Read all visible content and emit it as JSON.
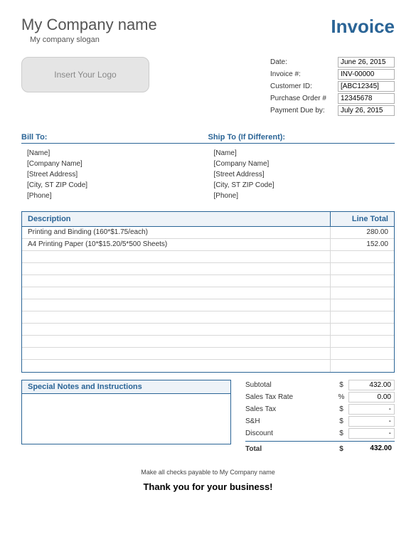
{
  "colors": {
    "accent": "#2a6496",
    "header_bg": "#eef3f8",
    "border_light": "#d8d8d8",
    "logo_bg": "#e5e5e5",
    "text_muted": "#555555"
  },
  "company": {
    "name": "My Company name",
    "slogan": "My company slogan",
    "logo_placeholder": "Insert Your Logo"
  },
  "title": "Invoice",
  "meta": {
    "date_label": "Date:",
    "date_value": "June 26, 2015",
    "invoice_num_label": "Invoice #:",
    "invoice_num_value": "INV-00000",
    "customer_id_label": "Customer ID:",
    "customer_id_value": "[ABC12345]",
    "po_label": "Purchase Order #",
    "po_value": "12345678",
    "due_label": "Payment Due by:",
    "due_value": "July 26, 2015"
  },
  "bill_to": {
    "header": "Bill To:",
    "name": "[Name]",
    "company": "[Company Name]",
    "street": "[Street Address]",
    "city": "[City, ST ZIP Code]",
    "phone": "[Phone]"
  },
  "ship_to": {
    "header": "Ship To (If Different):",
    "name": "[Name]",
    "company": "[Company Name]",
    "street": "[Street Address]",
    "city": "[City, ST ZIP Code]",
    "phone": "[Phone]"
  },
  "items": {
    "header_desc": "Description",
    "header_total": "Line Total",
    "rows": [
      {
        "desc": "Printing and Binding (160*$1.75/each)",
        "total": "280.00"
      },
      {
        "desc": "A4 Printing Paper (10*$15.20/5*500 Sheets)",
        "total": "152.00"
      },
      {
        "desc": "",
        "total": ""
      },
      {
        "desc": "",
        "total": ""
      },
      {
        "desc": "",
        "total": ""
      },
      {
        "desc": "",
        "total": ""
      },
      {
        "desc": "",
        "total": ""
      },
      {
        "desc": "",
        "total": ""
      },
      {
        "desc": "",
        "total": ""
      },
      {
        "desc": "",
        "total": ""
      },
      {
        "desc": "",
        "total": ""
      },
      {
        "desc": "",
        "total": ""
      }
    ]
  },
  "notes": {
    "header": "Special Notes and Instructions"
  },
  "totals": {
    "subtotal_label": "Subtotal",
    "subtotal_sym": "$",
    "subtotal_val": "432.00",
    "taxrate_label": "Sales Tax Rate",
    "taxrate_sym": "%",
    "taxrate_val": "0.00",
    "tax_label": "Sales Tax",
    "tax_sym": "$",
    "tax_val": "-",
    "sh_label": "S&H",
    "sh_sym": "$",
    "sh_val": "-",
    "discount_label": "Discount",
    "discount_sym": "$",
    "discount_val": "-",
    "total_label": "Total",
    "total_sym": "$",
    "total_val": "432.00"
  },
  "footer": {
    "line1": "Make all checks payable to My Company name",
    "line2": "Thank you for your business!"
  }
}
